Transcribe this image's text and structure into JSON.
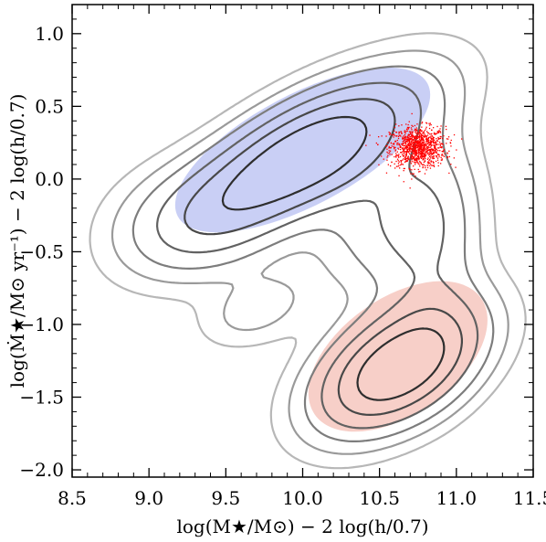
{
  "chart_data": {
    "type": "contour",
    "xlabel": "log(M★/M⊙) − 2 log(h/0.7)",
    "ylabel": "log(Ṁ★/M⊙ yr⁻¹) − 2 log(h/0.7)",
    "xlim": [
      8.5,
      11.5
    ],
    "ylim": [
      -2.05,
      1.2
    ],
    "x_ticks": [
      "8.5",
      "9.0",
      "9.5",
      "10.0",
      "10.5",
      "11.0",
      "11.5"
    ],
    "y_ticks": [
      "−2.0",
      "−1.5",
      "−1.0",
      "−0.5",
      "0.0",
      "0.5",
      "1.0"
    ],
    "contour_colors": [
      "#b7b7b7",
      "#9a9a9a",
      "#7d7d7d",
      "#626262",
      "#484848",
      "#2e2e2e"
    ],
    "shaded_regions": [
      {
        "center": [
          10.0,
          0.2
        ],
        "semi_axes": [
          0.92,
          0.38
        ],
        "angle_deg": 28,
        "color": "#c9cff5"
      },
      {
        "center": [
          10.62,
          -1.22
        ],
        "semi_axes": [
          0.66,
          0.4
        ],
        "angle_deg": 35,
        "color": "#f7cfc8"
      }
    ],
    "scatter_cloud": {
      "center": [
        10.75,
        0.22
      ],
      "spread": [
        0.09,
        0.07
      ],
      "count": 1100,
      "color": "#ff0000"
    },
    "grid": false,
    "legend": "none"
  }
}
